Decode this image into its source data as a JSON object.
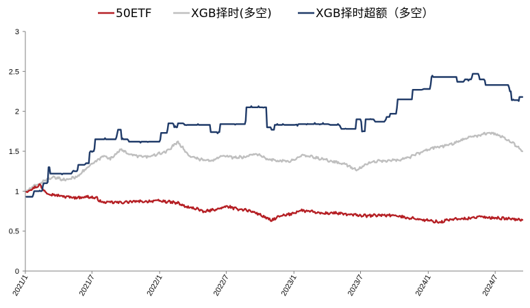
{
  "chart_data": {
    "type": "line",
    "title": "",
    "xlabel": "",
    "ylabel": "",
    "ylim": [
      0,
      3
    ],
    "yticks": [
      "0",
      "0.5",
      "1",
      "1.5",
      "2",
      "2.5",
      "3"
    ],
    "xticks": [
      "2021/1",
      "2021/7",
      "2022/1",
      "2022/7",
      "2023/1",
      "2023/7",
      "2024/1",
      "2024/7"
    ],
    "grid": false,
    "legend_position": "top",
    "series": [
      {
        "name": "50ETF",
        "color": "#b51f24",
        "style": "noisy",
        "points": [
          [
            "2021-01-04",
            1.0
          ],
          [
            "2021-01-20",
            1.03
          ],
          [
            "2021-02-10",
            1.08
          ],
          [
            "2021-02-18",
            1.02
          ],
          [
            "2021-03-05",
            0.97
          ],
          [
            "2021-03-25",
            0.95
          ],
          [
            "2021-04-20",
            0.93
          ],
          [
            "2021-05-20",
            0.92
          ],
          [
            "2021-06-20",
            0.93
          ],
          [
            "2021-07-15",
            0.91
          ],
          [
            "2021-07-28",
            0.86
          ],
          [
            "2021-08-20",
            0.86
          ],
          [
            "2021-09-20",
            0.86
          ],
          [
            "2021-10-20",
            0.87
          ],
          [
            "2021-11-20",
            0.87
          ],
          [
            "2021-12-20",
            0.88
          ],
          [
            "2022-01-20",
            0.87
          ],
          [
            "2022-02-20",
            0.85
          ],
          [
            "2022-03-15",
            0.8
          ],
          [
            "2022-04-15",
            0.78
          ],
          [
            "2022-04-27",
            0.74
          ],
          [
            "2022-05-20",
            0.76
          ],
          [
            "2022-06-20",
            0.79
          ],
          [
            "2022-07-05",
            0.81
          ],
          [
            "2022-07-25",
            0.78
          ],
          [
            "2022-08-20",
            0.77
          ],
          [
            "2022-09-20",
            0.73
          ],
          [
            "2022-10-20",
            0.66
          ],
          [
            "2022-10-31",
            0.63
          ],
          [
            "2022-11-20",
            0.68
          ],
          [
            "2022-12-20",
            0.71
          ],
          [
            "2023-01-20",
            0.76
          ],
          [
            "2023-02-20",
            0.74
          ],
          [
            "2023-03-20",
            0.72
          ],
          [
            "2023-04-20",
            0.73
          ],
          [
            "2023-05-20",
            0.71
          ],
          [
            "2023-06-20",
            0.7
          ],
          [
            "2023-07-20",
            0.69
          ],
          [
            "2023-08-20",
            0.7
          ],
          [
            "2023-09-20",
            0.7
          ],
          [
            "2023-10-20",
            0.68
          ],
          [
            "2023-11-20",
            0.66
          ],
          [
            "2023-12-20",
            0.64
          ],
          [
            "2024-01-20",
            0.62
          ],
          [
            "2024-02-05",
            0.61
          ],
          [
            "2024-02-20",
            0.64
          ],
          [
            "2024-03-20",
            0.65
          ],
          [
            "2024-04-20",
            0.66
          ],
          [
            "2024-05-20",
            0.68
          ],
          [
            "2024-06-20",
            0.67
          ],
          [
            "2024-07-20",
            0.66
          ],
          [
            "2024-08-20",
            0.65
          ],
          [
            "2024-09-13",
            0.64
          ]
        ]
      },
      {
        "name": "XGB择时(多空)",
        "color": "#bfbfbf",
        "style": "noisy",
        "points": [
          [
            "2021-01-04",
            1.0
          ],
          [
            "2021-01-20",
            1.05
          ],
          [
            "2021-02-10",
            1.1
          ],
          [
            "2021-03-01",
            1.15
          ],
          [
            "2021-03-20",
            1.17
          ],
          [
            "2021-04-20",
            1.14
          ],
          [
            "2021-05-20",
            1.18
          ],
          [
            "2021-06-20",
            1.3
          ],
          [
            "2021-07-20",
            1.4
          ],
          [
            "2021-08-05",
            1.45
          ],
          [
            "2021-08-20",
            1.4
          ],
          [
            "2021-09-15",
            1.52
          ],
          [
            "2021-10-20",
            1.45
          ],
          [
            "2021-11-20",
            1.43
          ],
          [
            "2021-12-20",
            1.45
          ],
          [
            "2022-01-20",
            1.5
          ],
          [
            "2022-02-10",
            1.58
          ],
          [
            "2022-02-20",
            1.62
          ],
          [
            "2022-03-20",
            1.45
          ],
          [
            "2022-04-20",
            1.4
          ],
          [
            "2022-05-20",
            1.38
          ],
          [
            "2022-06-20",
            1.45
          ],
          [
            "2022-07-20",
            1.42
          ],
          [
            "2022-08-20",
            1.43
          ],
          [
            "2022-09-20",
            1.47
          ],
          [
            "2022-10-20",
            1.4
          ],
          [
            "2022-11-20",
            1.38
          ],
          [
            "2022-12-20",
            1.37
          ],
          [
            "2023-01-20",
            1.45
          ],
          [
            "2023-02-20",
            1.43
          ],
          [
            "2023-03-20",
            1.4
          ],
          [
            "2023-04-20",
            1.37
          ],
          [
            "2023-05-20",
            1.34
          ],
          [
            "2023-06-20",
            1.26
          ],
          [
            "2023-07-20",
            1.35
          ],
          [
            "2023-08-20",
            1.38
          ],
          [
            "2023-09-20",
            1.38
          ],
          [
            "2023-10-20",
            1.4
          ],
          [
            "2023-11-20",
            1.44
          ],
          [
            "2023-12-20",
            1.5
          ],
          [
            "2024-01-20",
            1.55
          ],
          [
            "2024-02-20",
            1.57
          ],
          [
            "2024-03-20",
            1.62
          ],
          [
            "2024-04-20",
            1.68
          ],
          [
            "2024-05-20",
            1.7
          ],
          [
            "2024-06-15",
            1.74
          ],
          [
            "2024-07-20",
            1.68
          ],
          [
            "2024-08-20",
            1.6
          ],
          [
            "2024-09-13",
            1.5
          ]
        ]
      },
      {
        "name": "XGB择时超额（多空）",
        "color": "#1f3a68",
        "style": "step",
        "points": [
          [
            "2021-01-04",
            0.93
          ],
          [
            "2021-01-25",
            1.0
          ],
          [
            "2021-02-20",
            1.1
          ],
          [
            "2021-03-05",
            1.3
          ],
          [
            "2021-03-10",
            1.22
          ],
          [
            "2021-04-20",
            1.22
          ],
          [
            "2021-05-10",
            1.25
          ],
          [
            "2021-05-25",
            1.33
          ],
          [
            "2021-06-15",
            1.35
          ],
          [
            "2021-06-25",
            1.5
          ],
          [
            "2021-07-10",
            1.65
          ],
          [
            "2021-08-10",
            1.65
          ],
          [
            "2021-09-10",
            1.77
          ],
          [
            "2021-09-20",
            1.65
          ],
          [
            "2021-10-10",
            1.62
          ],
          [
            "2021-12-20",
            1.62
          ],
          [
            "2022-01-05",
            1.73
          ],
          [
            "2022-01-25",
            1.85
          ],
          [
            "2022-02-10",
            1.8
          ],
          [
            "2022-02-20",
            1.85
          ],
          [
            "2022-03-10",
            1.83
          ],
          [
            "2022-05-10",
            1.83
          ],
          [
            "2022-05-20",
            1.74
          ],
          [
            "2022-06-05",
            1.74
          ],
          [
            "2022-06-15",
            1.84
          ],
          [
            "2022-08-10",
            1.84
          ],
          [
            "2022-08-25",
            2.05
          ],
          [
            "2022-10-10",
            2.05
          ],
          [
            "2022-10-20",
            1.8
          ],
          [
            "2022-11-01",
            1.77
          ],
          [
            "2022-11-10",
            1.83
          ],
          [
            "2023-01-15",
            1.84
          ],
          [
            "2023-03-10",
            1.84
          ],
          [
            "2023-04-10",
            1.83
          ],
          [
            "2023-05-10",
            1.78
          ],
          [
            "2023-06-10",
            1.78
          ],
          [
            "2023-06-20",
            1.9
          ],
          [
            "2023-07-05",
            1.75
          ],
          [
            "2023-07-15",
            1.9
          ],
          [
            "2023-08-10",
            1.87
          ],
          [
            "2023-09-10",
            1.93
          ],
          [
            "2023-09-20",
            1.97
          ],
          [
            "2023-10-10",
            2.15
          ],
          [
            "2023-11-10",
            2.15
          ],
          [
            "2023-11-20",
            2.27
          ],
          [
            "2023-12-20",
            2.28
          ],
          [
            "2024-01-10",
            2.43
          ],
          [
            "2024-03-10",
            2.43
          ],
          [
            "2024-03-20",
            2.37
          ],
          [
            "2024-04-10",
            2.4
          ],
          [
            "2024-05-01",
            2.47
          ],
          [
            "2024-05-20",
            2.4
          ],
          [
            "2024-06-05",
            2.33
          ],
          [
            "2024-07-20",
            2.33
          ],
          [
            "2024-08-10",
            2.25
          ],
          [
            "2024-08-15",
            2.14
          ],
          [
            "2024-08-30",
            2.14
          ],
          [
            "2024-09-05",
            2.18
          ],
          [
            "2024-09-13",
            2.18
          ]
        ]
      }
    ]
  }
}
